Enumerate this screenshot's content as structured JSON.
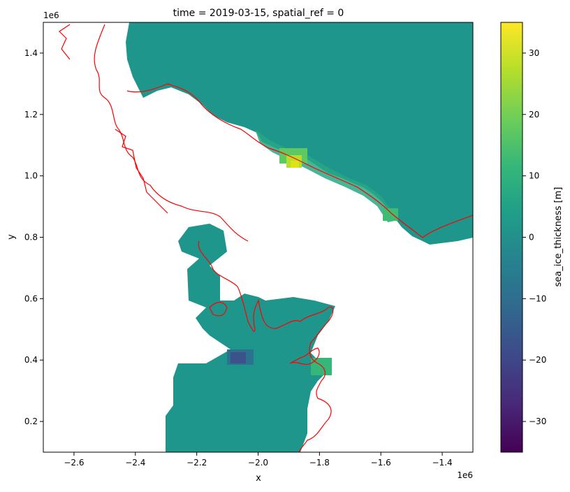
{
  "chart_data": {
    "type": "heatmap",
    "title": "time = 2019-03-15, spatial_ref = 0",
    "xlabel": "x",
    "ylabel": "y",
    "x_offset_label": "1e6",
    "y_offset_label": "1e6",
    "xlim": [
      -2.7,
      -1.3
    ],
    "ylim": [
      0.1,
      1.5
    ],
    "xticks": [
      -2.6,
      -2.4,
      -2.2,
      -2.0,
      -1.8,
      -1.6,
      -1.4
    ],
    "xtick_labels": [
      "−2.6",
      "−2.4",
      "−2.2",
      "−2.0",
      "−1.8",
      "−1.6",
      "−1.4"
    ],
    "yticks": [
      0.2,
      0.4,
      0.6,
      0.8,
      1.0,
      1.2,
      1.4
    ],
    "ytick_labels": [
      "0.2",
      "0.4",
      "0.6",
      "0.8",
      "1.0",
      "1.2",
      "1.4"
    ],
    "colorbar": {
      "label": "sea_ice_thickness [m]",
      "range": [
        -35,
        35
      ],
      "ticks": [
        -30,
        -20,
        -10,
        0,
        10,
        20,
        30
      ],
      "tick_labels": [
        "−30",
        "−20",
        "−10",
        "0",
        "10",
        "20",
        "30"
      ],
      "colormap": "viridis",
      "stops": [
        "#440154",
        "#482878",
        "#3e4989",
        "#31688e",
        "#26828e",
        "#1f9e89",
        "#35b779",
        "#6ece58",
        "#b5de2b",
        "#fde725"
      ]
    },
    "coastline_color": "#ff0000",
    "regions": [
      {
        "name": "northern-ice-sheet",
        "approx_value": 2
      },
      {
        "name": "southern-ice-area",
        "approx_value": 1
      },
      {
        "name": "thick-ice-hotspot",
        "approx_value": 33,
        "x": -1.86,
        "y": 1.04
      },
      {
        "name": "negative-anomaly",
        "approx_value": -17,
        "x": -2.06,
        "y": 0.41
      }
    ]
  }
}
